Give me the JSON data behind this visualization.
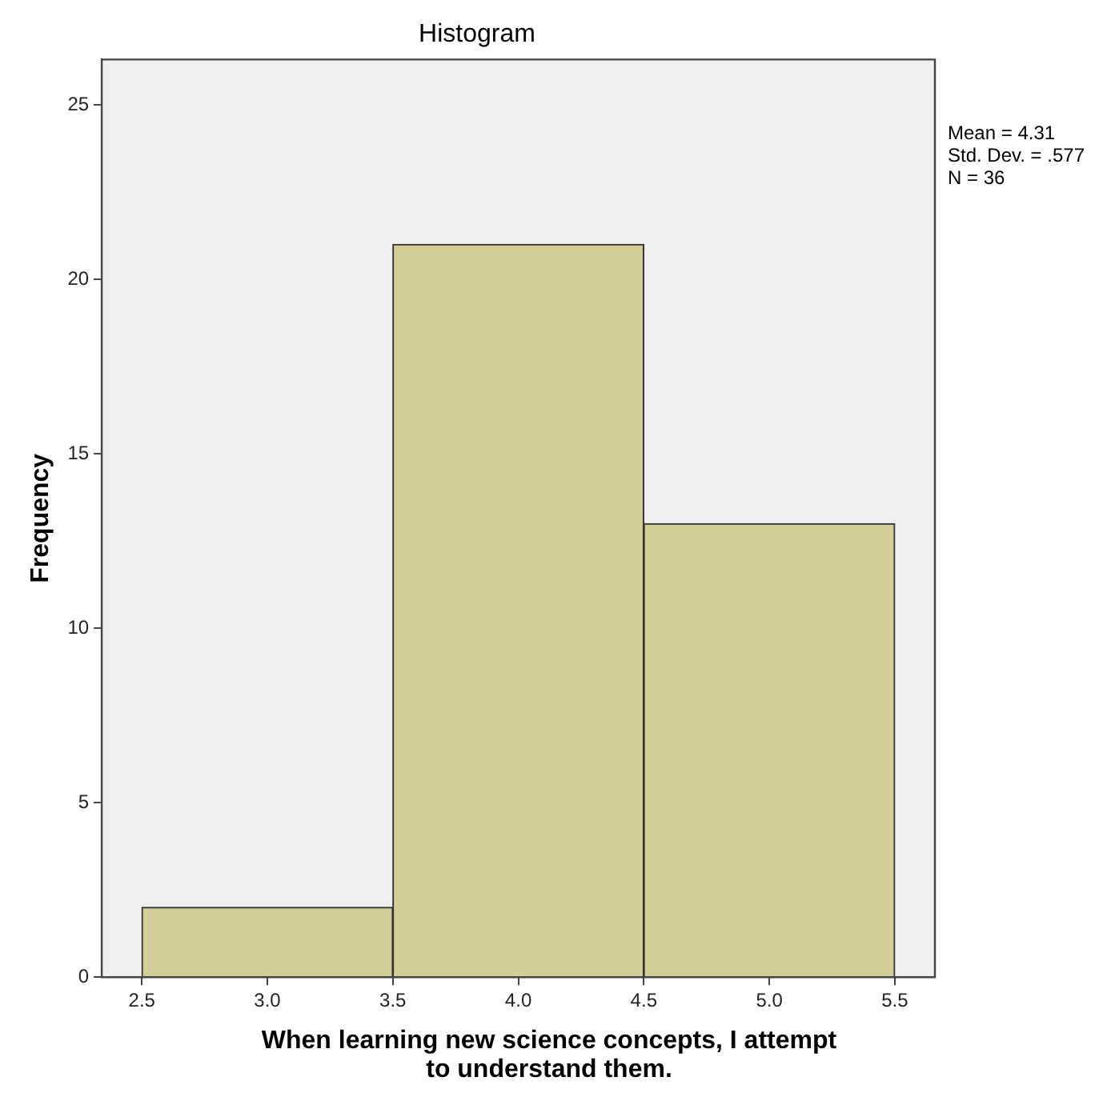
{
  "chart_data": {
    "type": "histogram",
    "title": "Histogram",
    "xlabel": "When learning new science concepts, I attempt to understand them.",
    "ylabel": "Frequency",
    "bins": [
      2.5,
      3.5,
      4.5,
      5.5
    ],
    "values": [
      2,
      21,
      13
    ],
    "color": "#d3ce97",
    "xlim": [
      2.34,
      5.66
    ],
    "xticks": [
      {
        "value": 2.5,
        "label": "2.5"
      },
      {
        "value": 3,
        "label": "3.0"
      },
      {
        "value": 3.5,
        "label": "3.5"
      },
      {
        "value": 4,
        "label": "4.0"
      },
      {
        "value": 4.5,
        "label": "4.5"
      },
      {
        "value": 5,
        "label": "5.0"
      },
      {
        "value": 5.5,
        "label": "5.5"
      }
    ],
    "ylim": [
      0,
      26.3
    ],
    "yticks": [
      0,
      5,
      10,
      15,
      20,
      25
    ],
    "grid": false,
    "legend": false,
    "annotations": [
      "Mean = 4.31",
      "Std. Dev. = .577",
      "N = 36"
    ]
  }
}
